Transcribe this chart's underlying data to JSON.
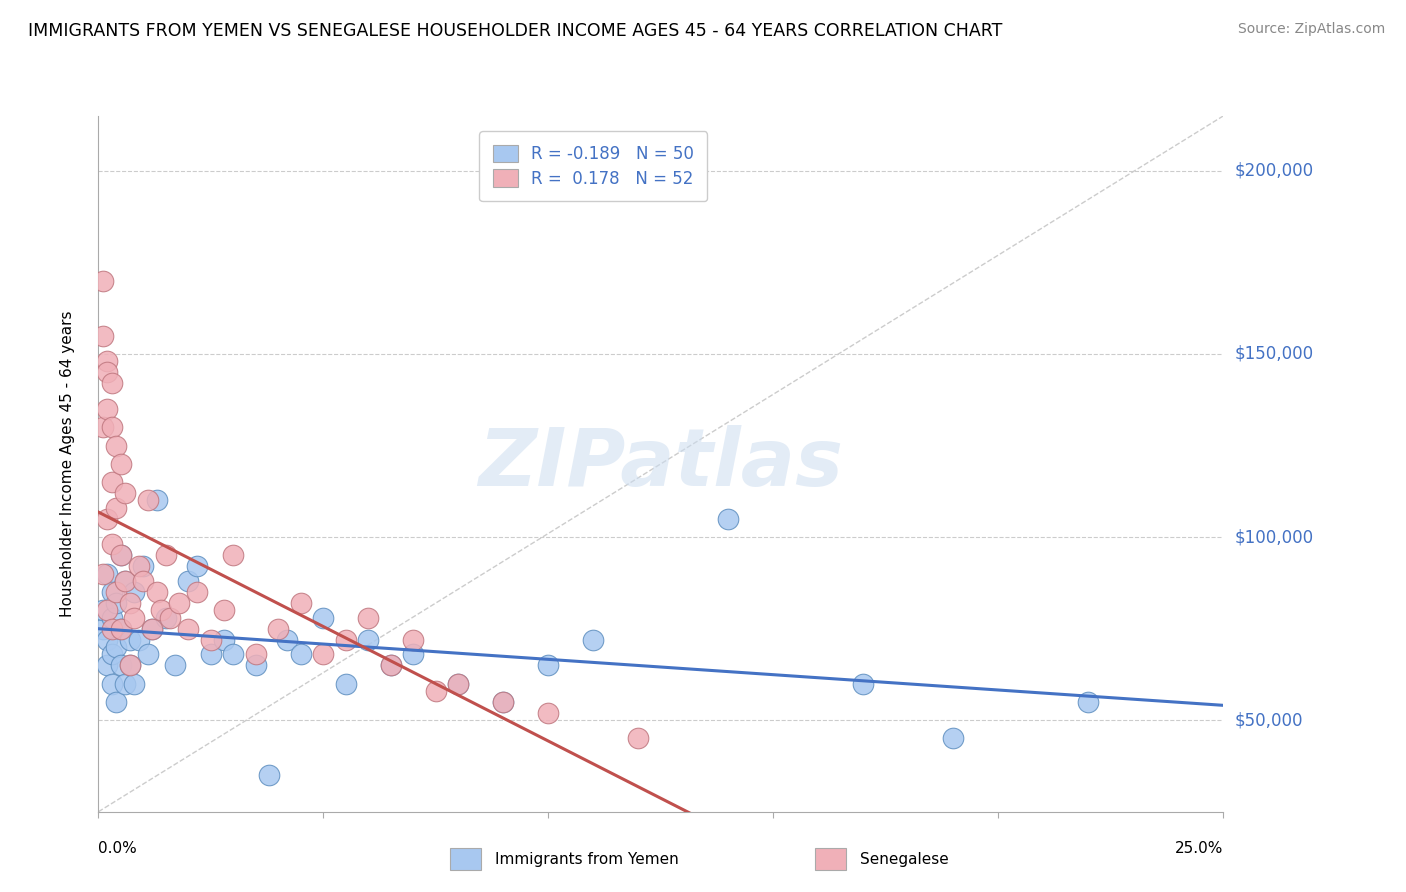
{
  "title": "IMMIGRANTS FROM YEMEN VS SENEGALESE HOUSEHOLDER INCOME AGES 45 - 64 YEARS CORRELATION CHART",
  "source": "Source: ZipAtlas.com",
  "ylabel": "Householder Income Ages 45 - 64 years",
  "xlim": [
    0.0,
    0.25
  ],
  "ylim": [
    25000,
    215000
  ],
  "yticks": [
    50000,
    100000,
    150000,
    200000
  ],
  "ytick_labels": [
    "$50,000",
    "$100,000",
    "$150,000",
    "$200,000"
  ],
  "r_yemen": -0.189,
  "n_yemen": 50,
  "r_senegal": 0.178,
  "n_senegal": 52,
  "legend_color_yemen": "#a8c8f0",
  "legend_color_senegal": "#f0b0b8",
  "line_color_yemen": "#4472c4",
  "line_color_senegal": "#c0504d",
  "scatter_color_yemen": "#a8c8f0",
  "scatter_color_senegal": "#f0b0b8",
  "dot_edge_yemen": "#6090c0",
  "dot_edge_senegal": "#c07880",
  "watermark": "ZIPatlas",
  "background_color": "#ffffff",
  "grid_color": "#cccccc",
  "yemen_x": [
    0.001,
    0.001,
    0.002,
    0.002,
    0.002,
    0.003,
    0.003,
    0.003,
    0.003,
    0.004,
    0.004,
    0.004,
    0.005,
    0.005,
    0.005,
    0.006,
    0.006,
    0.007,
    0.007,
    0.008,
    0.008,
    0.009,
    0.01,
    0.011,
    0.012,
    0.013,
    0.015,
    0.017,
    0.02,
    0.022,
    0.025,
    0.028,
    0.03,
    0.035,
    0.038,
    0.042,
    0.045,
    0.05,
    0.055,
    0.06,
    0.065,
    0.07,
    0.08,
    0.09,
    0.1,
    0.11,
    0.14,
    0.17,
    0.19,
    0.22
  ],
  "yemen_y": [
    75000,
    80000,
    65000,
    72000,
    90000,
    85000,
    78000,
    68000,
    60000,
    82000,
    55000,
    70000,
    95000,
    75000,
    65000,
    88000,
    60000,
    72000,
    65000,
    85000,
    60000,
    72000,
    92000,
    68000,
    75000,
    110000,
    78000,
    65000,
    88000,
    92000,
    68000,
    72000,
    68000,
    65000,
    35000,
    72000,
    68000,
    78000,
    60000,
    72000,
    65000,
    68000,
    60000,
    55000,
    65000,
    72000,
    105000,
    60000,
    45000,
    55000
  ],
  "senegal_x": [
    0.001,
    0.001,
    0.001,
    0.001,
    0.002,
    0.002,
    0.002,
    0.002,
    0.002,
    0.003,
    0.003,
    0.003,
    0.003,
    0.003,
    0.004,
    0.004,
    0.004,
    0.005,
    0.005,
    0.005,
    0.006,
    0.006,
    0.007,
    0.007,
    0.008,
    0.009,
    0.01,
    0.011,
    0.012,
    0.013,
    0.014,
    0.015,
    0.016,
    0.018,
    0.02,
    0.022,
    0.025,
    0.028,
    0.03,
    0.035,
    0.04,
    0.045,
    0.05,
    0.055,
    0.06,
    0.065,
    0.07,
    0.075,
    0.08,
    0.09,
    0.1,
    0.12
  ],
  "senegal_y": [
    170000,
    155000,
    130000,
    90000,
    148000,
    135000,
    145000,
    105000,
    80000,
    130000,
    115000,
    142000,
    98000,
    75000,
    125000,
    108000,
    85000,
    120000,
    95000,
    75000,
    112000,
    88000,
    82000,
    65000,
    78000,
    92000,
    88000,
    110000,
    75000,
    85000,
    80000,
    95000,
    78000,
    82000,
    75000,
    85000,
    72000,
    80000,
    95000,
    68000,
    75000,
    82000,
    68000,
    72000,
    78000,
    65000,
    72000,
    58000,
    60000,
    55000,
    52000,
    45000
  ],
  "xtick_positions": [
    0.0,
    0.05,
    0.1,
    0.15,
    0.2,
    0.25
  ],
  "xtick_labels": [
    "0.0%",
    "",
    "",
    "",
    "",
    "25.0%"
  ]
}
